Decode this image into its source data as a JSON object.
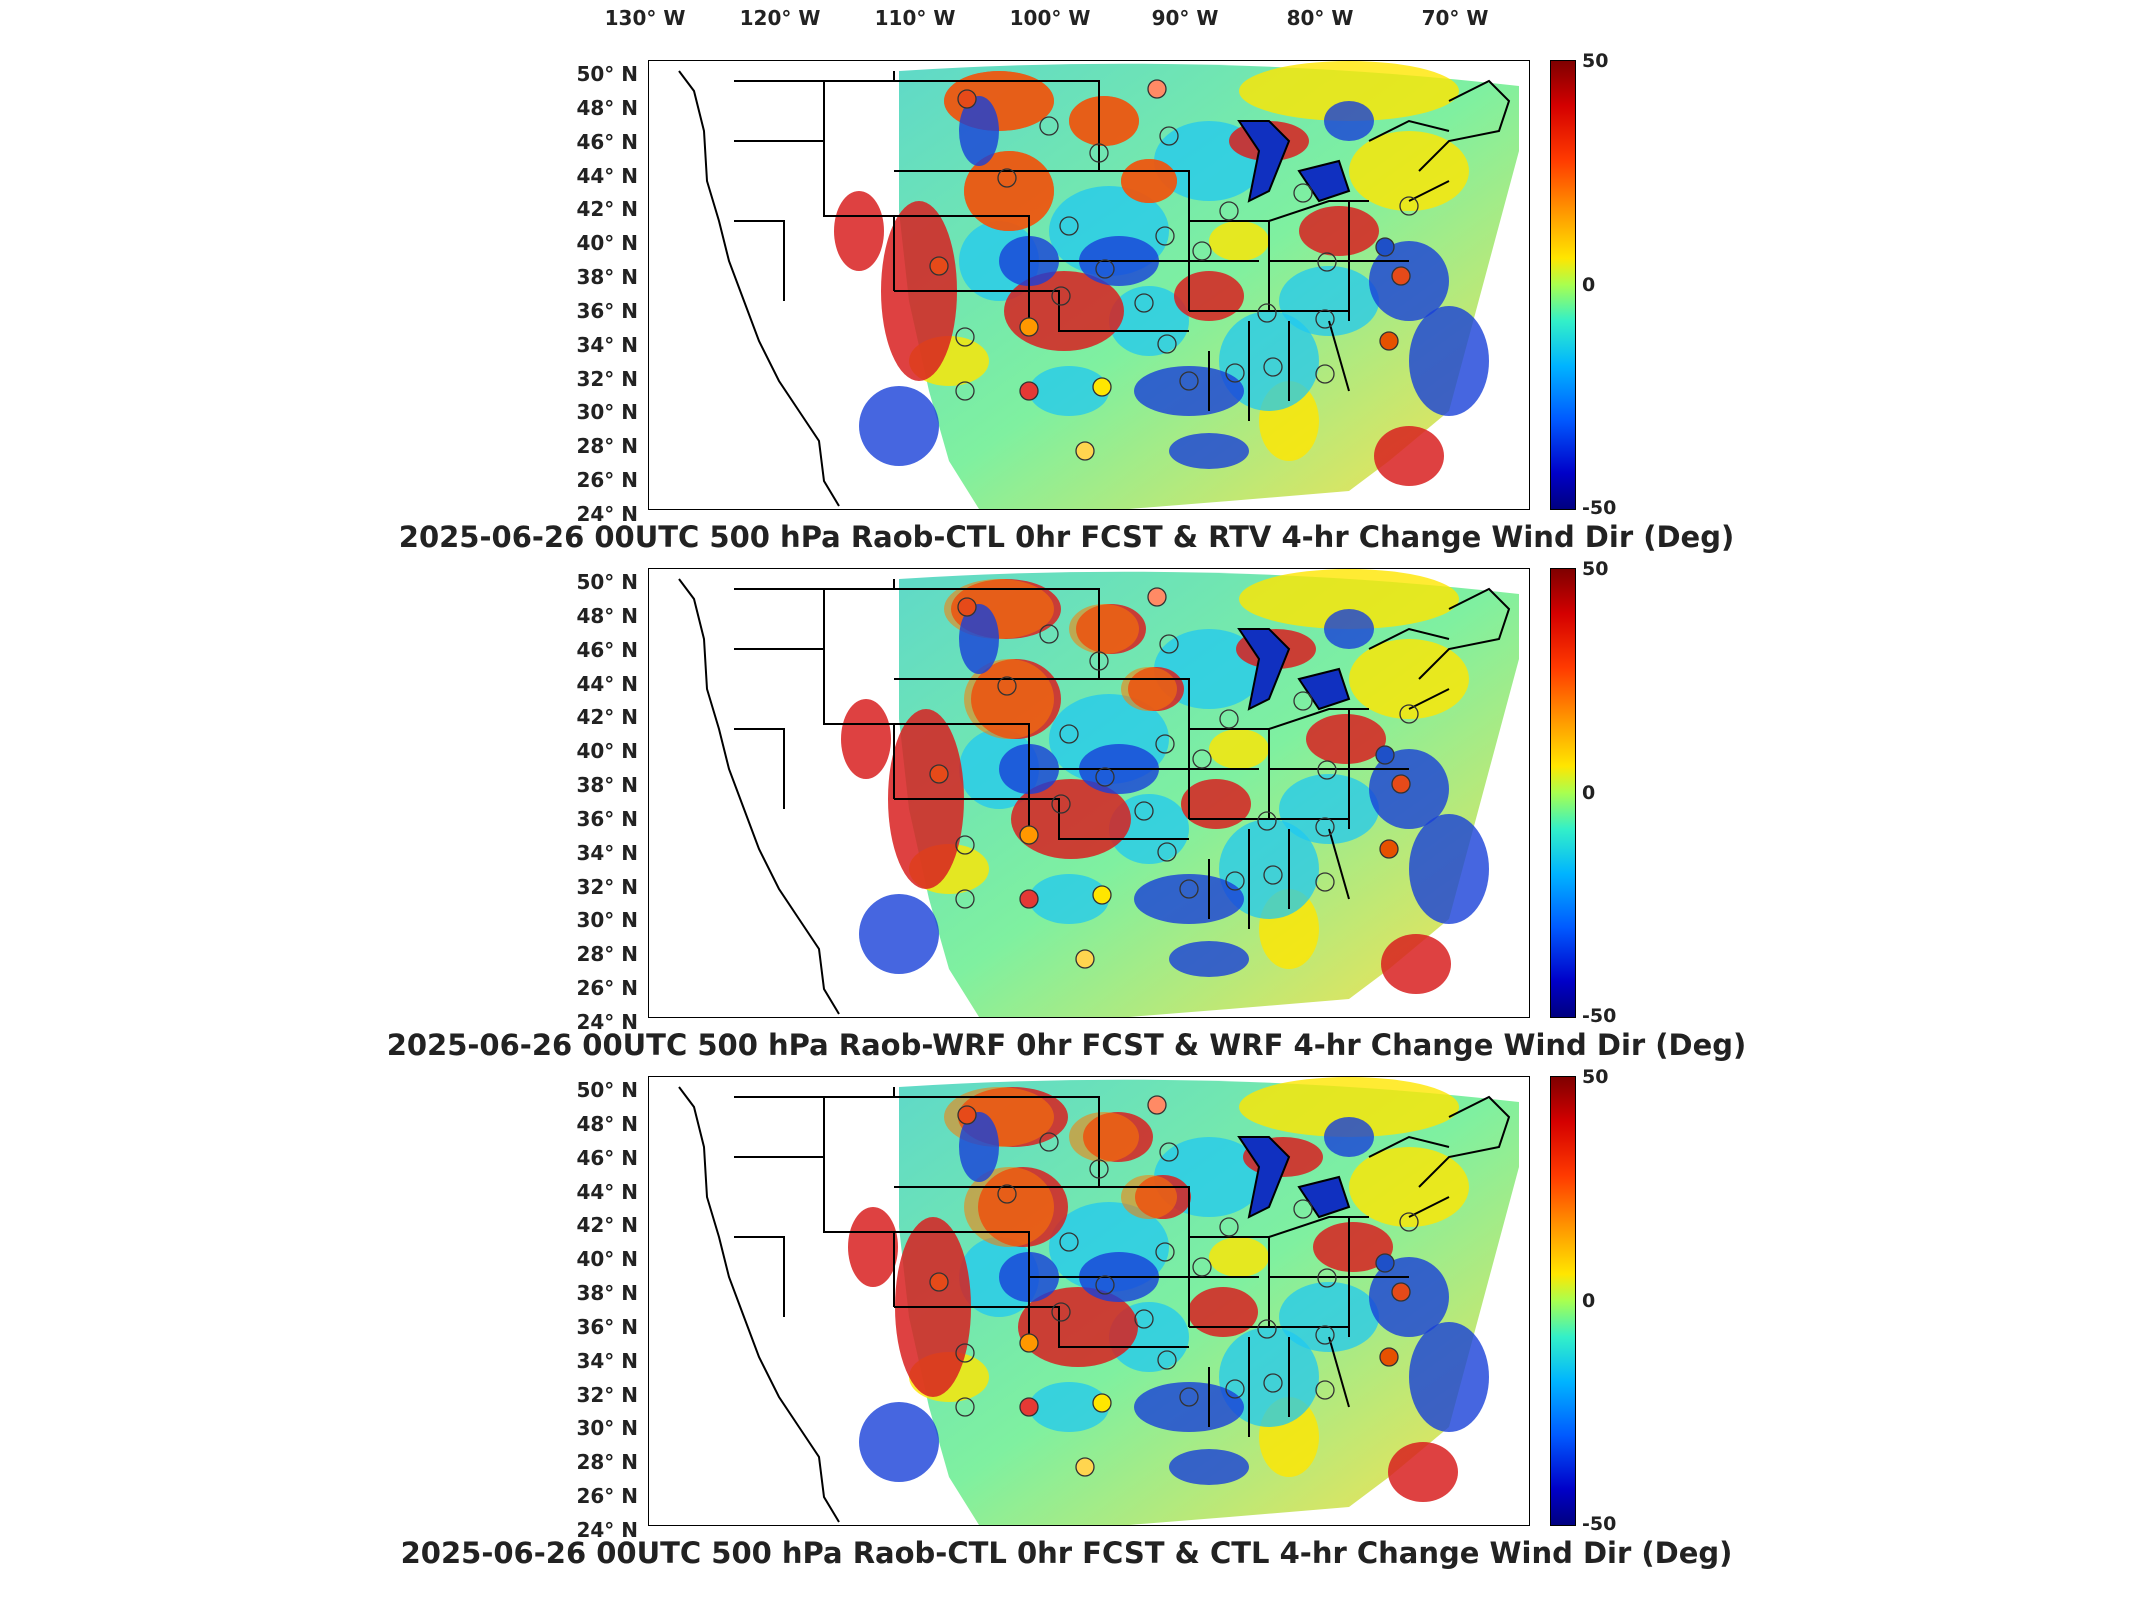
{
  "lon_labels": [
    "130° W",
    "120° W",
    "110° W",
    "100° W",
    "90° W",
    "80° W",
    "70° W"
  ],
  "lat_labels": [
    "50° N",
    "48° N",
    "46° N",
    "44° N",
    "42° N",
    "40° N",
    "38° N",
    "36° N",
    "34° N",
    "32° N",
    "30° N",
    "28° N",
    "26° N",
    "24° N"
  ],
  "colorbar": {
    "max": "50",
    "mid": "0",
    "min": "-50"
  },
  "panels": [
    {
      "title": "2025-06-26 00UTC 500 hPa Raob-CTL 0hr FCST & RTV 4-hr Change Wind Dir (Deg)"
    },
    {
      "title": "2025-06-26 00UTC 500 hPa Raob-WRF 0hr FCST & WRF 4-hr Change Wind Dir (Deg)"
    },
    {
      "title": "2025-06-26 00UTC 500 hPa Raob-CTL 0hr FCST & CTL 4-hr Change Wind Dir (Deg)"
    }
  ],
  "colors": {
    "max": "#7f0000",
    "zero": "#a8ff50",
    "min": "#000080"
  }
}
